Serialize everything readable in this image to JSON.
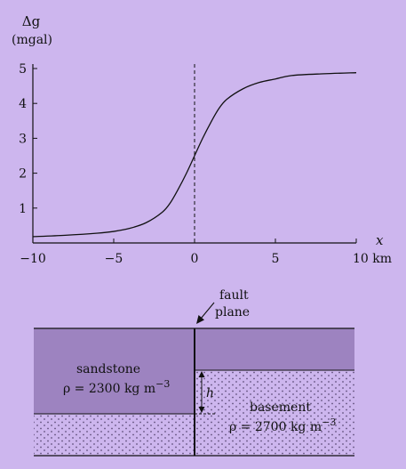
{
  "chart_data": {
    "type": "line",
    "ylabel_symbol": "Δg",
    "ylabel_unit": "(mgal)",
    "xlabel": "x",
    "x_unit": "km",
    "xlim": [
      -10,
      10
    ],
    "ylim": [
      0,
      5
    ],
    "x_ticks": [
      -10,
      -5,
      0,
      5,
      10
    ],
    "x_tick_labels": [
      "−10",
      "−5",
      "0",
      "5",
      "10 km"
    ],
    "y_ticks": [
      1,
      2,
      3,
      4,
      5
    ],
    "y_tick_labels": [
      "1",
      "2",
      "3",
      "4",
      "5"
    ],
    "fault_position_x": 0,
    "series": [
      {
        "x": [
          -10,
          -8,
          -6,
          -5,
          -4,
          -3,
          -2,
          -1.5,
          -1,
          -0.5,
          0,
          0.5,
          1,
          1.5,
          2,
          3,
          4,
          5,
          6,
          8,
          10
        ],
        "y": [
          0.18,
          0.22,
          0.28,
          0.33,
          0.42,
          0.58,
          0.88,
          1.15,
          1.55,
          2.0,
          2.5,
          3.0,
          3.45,
          3.85,
          4.12,
          4.42,
          4.6,
          4.7,
          4.8,
          4.85,
          4.88
        ]
      }
    ]
  },
  "cross_section": {
    "fault_label_line1": "fault",
    "fault_label_line2": "plane",
    "sandstone_label": "sandstone",
    "sandstone_density": "ρ = 2300 kg m",
    "sandstone_exp": "−3",
    "basement_label": "basement",
    "basement_density": "ρ = 2700 kg m",
    "basement_exp": "−3",
    "offset_label": "h",
    "colors": {
      "sandstone": "#9d83c0",
      "basement_fill": "#cdb6ee",
      "basement_dots": "#5a4a75"
    }
  }
}
